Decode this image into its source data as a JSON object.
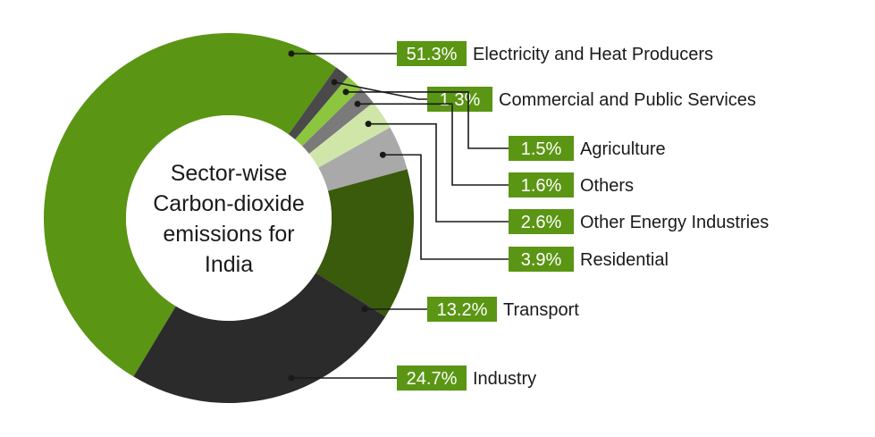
{
  "chart_data": {
    "type": "pie",
    "title": "Sector-wise Carbon-dioxide emissions for India",
    "title_lines": [
      "Sector-wise",
      "Carbon-dioxide",
      "emissions for",
      "India"
    ],
    "series": [
      {
        "name": "Electricity and Heat Producers",
        "value": 51.3,
        "pct_label": "51.3%",
        "color": "#5b9514"
      },
      {
        "name": "Commercial and Public Services",
        "value": 1.3,
        "pct_label": "1.3%",
        "color": "#4a4a4a"
      },
      {
        "name": "Agriculture",
        "value": 1.5,
        "pct_label": "1.5%",
        "color": "#8cc63f"
      },
      {
        "name": "Others",
        "value": 1.6,
        "pct_label": "1.6%",
        "color": "#7a7a7a"
      },
      {
        "name": "Other Energy Industries",
        "value": 2.6,
        "pct_label": "2.6%",
        "color": "#cfe6a8"
      },
      {
        "name": "Residential",
        "value": 3.9,
        "pct_label": "3.9%",
        "color": "#a9a9a9"
      },
      {
        "name": "Transport",
        "value": 13.2,
        "pct_label": "13.2%",
        "color": "#3a5a0c"
      },
      {
        "name": "Industry",
        "value": 24.7,
        "pct_label": "24.7%",
        "color": "#2b2b2b"
      }
    ],
    "label_box_color": "#5b9514",
    "leader_line_color": "#1a1a1a"
  }
}
